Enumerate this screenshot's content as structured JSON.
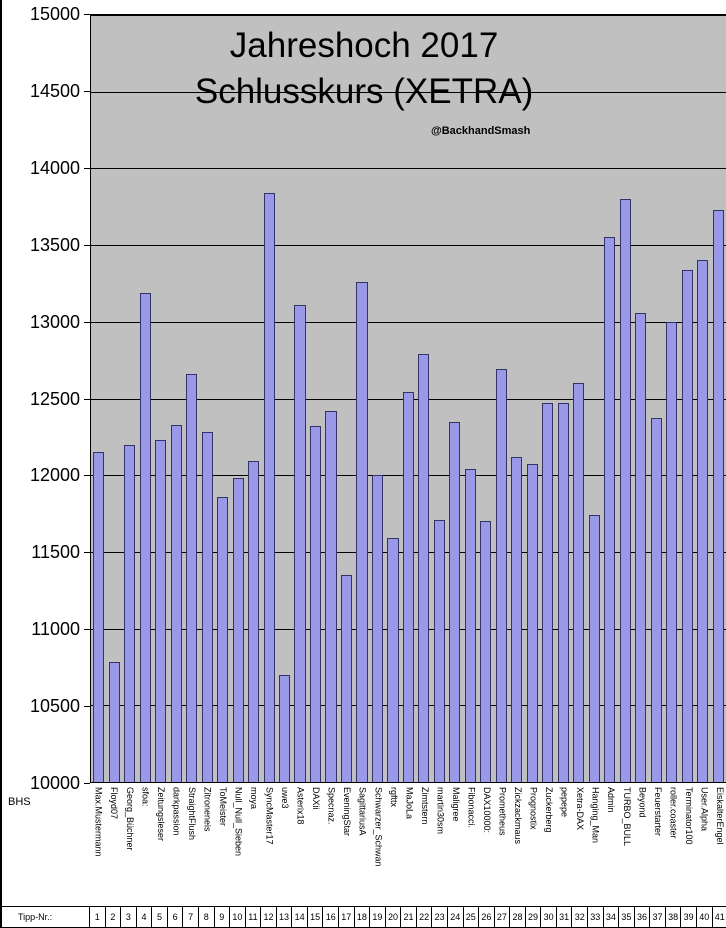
{
  "chart_data": {
    "type": "bar",
    "title": "Jahreshoch 2017",
    "subtitle": "Schlusskurs (XETRA)",
    "watermark": "@BackhandSmash",
    "xlabel": "",
    "ylabel": "",
    "ylim": [
      10000,
      15000
    ],
    "ytick_step": 500,
    "yticks": [
      15000,
      14500,
      14000,
      13500,
      13000,
      12500,
      12000,
      11500,
      11000,
      10500,
      10000
    ],
    "grid": true,
    "legend": false,
    "plot_bg_color": "#c0c0c0",
    "gridline_color": "#000000",
    "bar_fill_color": "#9999e8",
    "bar_border_color": "#333366",
    "bottom_left_label": "BHS",
    "x_row_label": "Tipp-Nr.:",
    "categories": [
      "Max.Mustermann",
      "Floyd07",
      "Georg_Büchner",
      "sfoa:",
      "Zeitungsleser",
      "darkpassion",
      "StraightFlush",
      "Zitroneneis",
      "ToMeister",
      "Null_Null_Sieben",
      "moya",
      "SyncMaster17",
      "uwe3",
      "Asterix18",
      "DAXii",
      "Specnaz.",
      "EveningStar",
      "SagittariusA",
      "Schwarzer_Schwan",
      "rgfttx",
      "MaJoLa",
      "Zimtstern",
      "martin30sm",
      "Maligree",
      "Fibonacci.",
      "DAX10000:",
      "Prometheus",
      "Zickzackmaus",
      "Prognostix",
      "Zuckerberg",
      "pepepe",
      "Xetra-DAX",
      "Hanging_Man",
      "Admin",
      "TURBO_BULL",
      "Beyond",
      "Feuerstarter",
      "roller.coaster",
      "Terminator100",
      "User.Alpha",
      "EiskalterEngel"
    ],
    "tipp_numbers": [
      1,
      2,
      3,
      4,
      5,
      6,
      7,
      8,
      9,
      10,
      11,
      12,
      13,
      14,
      15,
      16,
      17,
      18,
      19,
      20,
      21,
      22,
      23,
      24,
      25,
      26,
      27,
      28,
      29,
      30,
      31,
      32,
      33,
      34,
      35,
      36,
      37,
      38,
      39,
      40,
      41
    ],
    "values": [
      12150,
      10780,
      12200,
      13190,
      12230,
      12330,
      12660,
      12280,
      11860,
      11980,
      12090,
      13840,
      10700,
      13110,
      12320,
      12420,
      11350,
      13260,
      12000,
      11590,
      12540,
      12790,
      11710,
      12350,
      12040,
      11700,
      12690,
      12120,
      12070,
      12470,
      12470,
      12600,
      11740,
      13550,
      13800,
      13060,
      12370,
      13000,
      13340,
      13400,
      13730
    ]
  }
}
